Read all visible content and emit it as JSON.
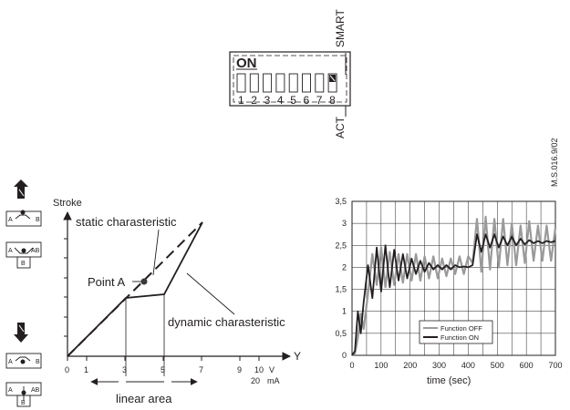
{
  "dip_switch": {
    "on_label": "ON",
    "smart_label": "SMART",
    "act_label": "ACT",
    "switch_numbers": [
      "1",
      "2",
      "3",
      "4",
      "5",
      "6",
      "7",
      "8"
    ],
    "active_switch": 8
  },
  "document_code": "M.S.016.9/02",
  "left_diagram": {
    "y_axis_label": "Stroke",
    "x_axis_letter": "Y",
    "x_ticks_v": [
      "0",
      "1",
      "3",
      "5",
      "7",
      "9",
      "10"
    ],
    "x_unit_v": "V",
    "x_tick_ma": "20",
    "x_unit_ma": "mA",
    "static_label": "static charasteristic",
    "point_label": "Point A",
    "dynamic_label": "dynamic charasteristic",
    "linear_area_label": "linear area",
    "valve_top_labels": [
      "A",
      "B",
      "A",
      "AB",
      "B"
    ],
    "valve_bottom_labels": [
      "A",
      "B",
      "A",
      "AB",
      "B"
    ]
  },
  "chart_data": {
    "type": "line",
    "xlabel": "time (sec)",
    "ylabel": "",
    "xlim": [
      0,
      700
    ],
    "ylim": [
      0,
      3.5
    ],
    "x_ticks": [
      "0",
      "100",
      "200",
      "300",
      "400",
      "500",
      "600",
      "700"
    ],
    "y_ticks": [
      "0",
      "0,5",
      "1",
      "1,5",
      "2",
      "2,5",
      "3",
      "3,5"
    ],
    "grid": true,
    "legend_position": "bottom-center",
    "series": [
      {
        "name": "Function OFF",
        "color": "#9a9a9a",
        "x": [
          0,
          10,
          20,
          30,
          40,
          55,
          70,
          85,
          100,
          115,
          130,
          145,
          160,
          175,
          190,
          205,
          220,
          235,
          250,
          265,
          280,
          295,
          310,
          325,
          340,
          355,
          370,
          385,
          400,
          415,
          430,
          445,
          460,
          475,
          490,
          505,
          520,
          535,
          550,
          565,
          580,
          595,
          610,
          625,
          640,
          655,
          670,
          685,
          700
        ],
        "y": [
          0,
          0.05,
          0.4,
          0.95,
          0.6,
          1.4,
          2.3,
          1.6,
          2.45,
          1.55,
          2.35,
          1.6,
          2.3,
          1.65,
          2.3,
          1.7,
          2.3,
          1.7,
          2.25,
          1.75,
          2.25,
          1.75,
          2.2,
          1.8,
          2.2,
          1.85,
          2.25,
          1.85,
          2.25,
          2.1,
          3.1,
          1.9,
          3.15,
          1.95,
          3.1,
          2.0,
          3.1,
          2.05,
          3.0,
          2.05,
          2.95,
          2.1,
          3.05,
          2.15,
          2.95,
          2.15,
          2.95,
          2.15,
          2.9
        ]
      },
      {
        "name": "Function ON",
        "color": "#231f20",
        "x": [
          0,
          10,
          20,
          30,
          40,
          55,
          70,
          85,
          100,
          115,
          130,
          145,
          160,
          175,
          190,
          205,
          220,
          235,
          250,
          265,
          280,
          295,
          310,
          325,
          340,
          355,
          370,
          385,
          400,
          415,
          430,
          445,
          460,
          475,
          490,
          505,
          520,
          535,
          550,
          565,
          580,
          595,
          610,
          625,
          640,
          655,
          670,
          685,
          700
        ],
        "y": [
          0,
          0.1,
          1.0,
          0.5,
          1.2,
          2.05,
          1.3,
          2.45,
          1.45,
          2.5,
          1.55,
          2.4,
          1.7,
          2.3,
          1.75,
          2.2,
          1.85,
          2.15,
          1.9,
          2.1,
          1.95,
          2.05,
          1.95,
          2.05,
          1.95,
          2.05,
          2.0,
          2.02,
          2.0,
          2.05,
          2.75,
          2.35,
          2.75,
          2.45,
          2.75,
          2.45,
          2.7,
          2.5,
          2.7,
          2.5,
          2.65,
          2.52,
          2.62,
          2.55,
          2.6,
          2.55,
          2.6,
          2.57,
          2.6
        ]
      }
    ]
  }
}
